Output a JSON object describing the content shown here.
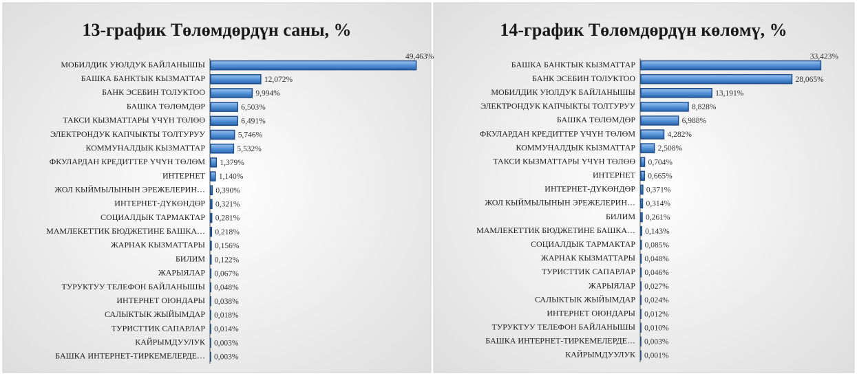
{
  "chart_data": [
    {
      "type": "hbar",
      "title": "13-график Төлөмдөрдүн саны, %",
      "color": "#4f8fd6",
      "xlim": [
        0,
        53
      ],
      "categories": [
        "МОБИЛДИК УЮЛДУК БАЙЛАНЫШЫ",
        "БАШКА БАНКТЫК КЫЗМАТТАР",
        "БАНК ЭСЕБИН ТОЛУКТОО",
        "БАШКА ТӨЛӨМДӨР",
        "ТАКСИ КЫЗМАТТАРЫ ҮЧҮН ТӨЛӨӨ",
        "ЭЛЕКТРОНДУК КАПЧЫКТЫ ТОЛТУРУУ",
        "КОММУНАЛДЫК КЫЗМАТТАР",
        "ФКУЛАРДАН КРЕДИТТЕР ҮЧҮН ТӨЛӨМ",
        "ИНТЕРНЕТ",
        "ЖОЛ КЫЙМЫЛЫНЫН ЭРЕЖЕЛЕРИН…",
        "ИНТЕРНЕТ-ДҮКӨНДӨР",
        "СОЦИАЛДЫК ТАРМАКТАР",
        "МАМЛЕКЕТТИК БЮДЖЕТИНЕ БАШКА…",
        "ЖАРНАК КЫЗМАТТАРЫ",
        "БИЛИМ",
        "ЖАРЫЯЛАР",
        "ТУРУКТУУ ТЕЛЕФОН БАЙЛАНЫШЫ",
        "ИНТЕРНЕТ ОЮНДАРЫ",
        "САЛЫКТЫК ЖЫЙЫМДАР",
        "ТУРИСТТИК САПАРЛАР",
        "КАЙРЫМДУУЛУК",
        "БАШКА ИНТЕРНЕТ-ТИРКЕМЕЛЕРДЕ…"
      ],
      "values": [
        49.463,
        12.072,
        9.994,
        6.503,
        6.491,
        5.746,
        5.532,
        1.379,
        1.14,
        0.39,
        0.321,
        0.281,
        0.218,
        0.156,
        0.122,
        0.067,
        0.048,
        0.038,
        0.018,
        0.014,
        0.003,
        0.003
      ],
      "value_labels": [
        "49,463%",
        "12,072%",
        "9,994%",
        "6,503%",
        "6,491%",
        "5,746%",
        "5,532%",
        "1,379%",
        "1,140%",
        "0,390%",
        "0,321%",
        "0,281%",
        "0,218%",
        "0,156%",
        "0,122%",
        "0,067%",
        "0,048%",
        "0,038%",
        "0,018%",
        "0,014%",
        "0,003%",
        "0,003%"
      ]
    },
    {
      "type": "hbar",
      "title": "14-график Төлөмдөрдүн көлөмү, %",
      "color": "#4f8fd6",
      "xlim": [
        0,
        39
      ],
      "categories": [
        "БАШКА БАНКТЫК КЫЗМАТТАР",
        "БАНК ЭСЕБИН ТОЛУКТОО",
        "МОБИЛДИК УЮЛДУК БАЙЛАНЫШЫ",
        "ЭЛЕКТРОНДУК КАПЧЫКТЫ ТОЛТУРУУ",
        "БАШКА ТӨЛӨМДӨР",
        "ФКУЛАРДАН КРЕДИТТЕР ҮЧҮН ТӨЛӨМ",
        "КОММУНАЛДЫК КЫЗМАТТАР",
        "ТАКСИ КЫЗМАТТАРЫ ҮЧҮН ТӨЛӨӨ",
        "ИНТЕРНЕТ",
        "ИНТЕРНЕТ-ДҮКӨНДӨР",
        "ЖОЛ КЫЙМЫЛЫНЫН ЭРЕЖЕЛЕРИН…",
        "БИЛИМ",
        "МАМЛЕКЕТТИК БЮДЖЕТИНЕ БАШКА…",
        "СОЦИАЛДЫК ТАРМАКТАР",
        "ЖАРНАК КЫЗМАТТАРЫ",
        "ТУРИСТТИК САПАРЛАР",
        "ЖАРЫЯЛАР",
        "САЛЫКТЫК ЖЫЙЫМДАР",
        "ИНТЕРНЕТ ОЮНДАРЫ",
        "ТУРУКТУУ ТЕЛЕФОН БАЙЛАНЫШЫ",
        "БАШКА ИНТЕРНЕТ-ТИРКЕМЕЛЕРДЕ…",
        "КАЙРЫМДУУЛУК"
      ],
      "values": [
        33.423,
        28.065,
        13.191,
        8.828,
        6.988,
        4.282,
        2.508,
        0.704,
        0.665,
        0.371,
        0.314,
        0.261,
        0.143,
        0.085,
        0.048,
        0.046,
        0.027,
        0.024,
        0.012,
        0.01,
        0.003,
        0.001
      ],
      "value_labels": [
        "33,423%",
        "28,065%",
        "13,191%",
        "8,828%",
        "6,988%",
        "4,282%",
        "2,508%",
        "0,704%",
        "0,665%",
        "0,371%",
        "0,314%",
        "0,261%",
        "0,143%",
        "0,085%",
        "0,048%",
        "0,046%",
        "0,027%",
        "0,024%",
        "0,012%",
        "0,010%",
        "0,003%",
        "0,001%"
      ]
    }
  ]
}
